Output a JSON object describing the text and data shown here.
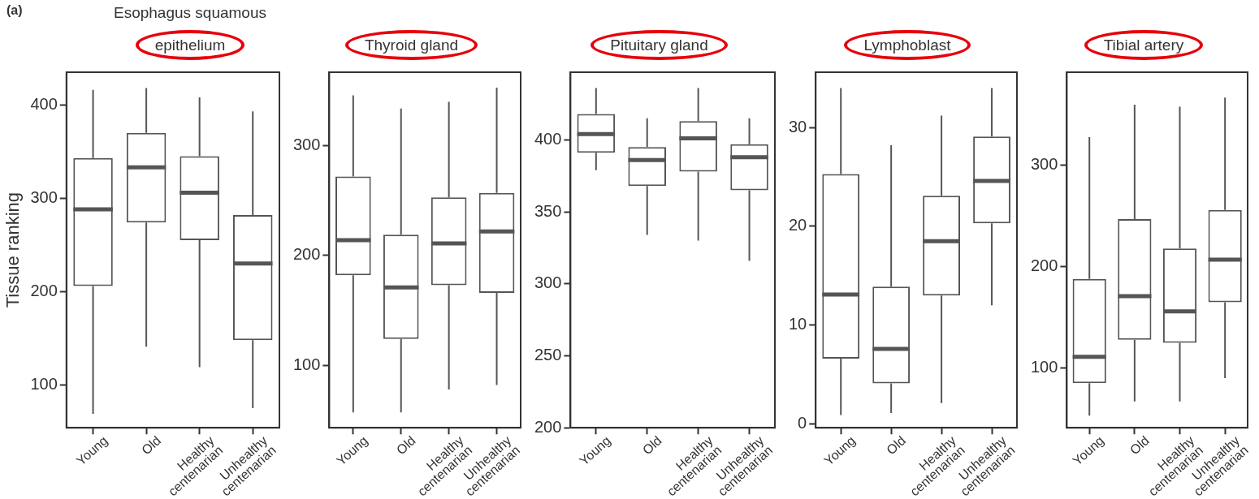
{
  "chart_data": [
    {
      "type": "box",
      "title": "Esophagus squamous epithelium",
      "ylabel": "Tissue ranking",
      "annotations": [
        "(a)"
      ],
      "categories": [
        "Young",
        "Old",
        "Healthy centenarian",
        "Unhealthy centenarian"
      ],
      "ylim": [
        54,
        435
      ],
      "yticks": [
        100,
        200,
        300,
        400
      ],
      "boxes": [
        {
          "low": 69,
          "q1": 206,
          "median": 288,
          "q3": 343,
          "high": 416
        },
        {
          "low": 141,
          "q1": 274,
          "median": 333,
          "q3": 370,
          "high": 418
        },
        {
          "low": 119,
          "q1": 255,
          "median": 306,
          "q3": 345,
          "high": 408
        },
        {
          "low": 75,
          "q1": 148,
          "median": 230,
          "q3": 282,
          "high": 393
        }
      ]
    },
    {
      "type": "box",
      "title": "Thyroid gland",
      "categories": [
        "Young",
        "Old",
        "Healthy centenarian",
        "Unhealthy centenarian"
      ],
      "ylim": [
        43,
        367
      ],
      "yticks": [
        100,
        200,
        300
      ],
      "boxes": [
        {
          "low": 57,
          "q1": 182,
          "median": 214,
          "q3": 272,
          "high": 346
        },
        {
          "low": 57,
          "q1": 124,
          "median": 171,
          "q3": 219,
          "high": 334
        },
        {
          "low": 78,
          "q1": 173,
          "median": 211,
          "q3": 253,
          "high": 340
        },
        {
          "low": 82,
          "q1": 166,
          "median": 222,
          "q3": 257,
          "high": 353
        }
      ]
    },
    {
      "type": "box",
      "title": "Pituitary gland",
      "categories": [
        "Young",
        "Old",
        "Healthy centenarian",
        "Unhealthy centenarian"
      ],
      "ylim": [
        200,
        447
      ],
      "yticks": [
        200,
        250,
        300,
        350,
        400
      ],
      "boxes": [
        {
          "low": 379,
          "q1": 391,
          "median": 404,
          "q3": 418,
          "high": 436
        },
        {
          "low": 334,
          "q1": 368,
          "median": 386,
          "q3": 395,
          "high": 415
        },
        {
          "low": 330,
          "q1": 378,
          "median": 401,
          "q3": 413,
          "high": 436
        },
        {
          "low": 316,
          "q1": 365,
          "median": 388,
          "q3": 397,
          "high": 415
        }
      ]
    },
    {
      "type": "box",
      "title": "Lymphoblast",
      "categories": [
        "Young",
        "Old",
        "Healthy centenarian",
        "Unhealthy centenarian"
      ],
      "ylim": [
        -0.4,
        35.6
      ],
      "yticks": [
        0,
        10,
        20,
        30
      ],
      "boxes": [
        {
          "low": 0.9,
          "q1": 6.6,
          "median": 13.1,
          "q3": 25.3,
          "high": 34
        },
        {
          "low": 1.1,
          "q1": 4.1,
          "median": 7.6,
          "q3": 13.9,
          "high": 28.2
        },
        {
          "low": 2.1,
          "q1": 13,
          "median": 18.5,
          "q3": 23.1,
          "high": 31.2
        },
        {
          "low": 12,
          "q1": 20.3,
          "median": 24.6,
          "q3": 29.1,
          "high": 34
        }
      ]
    },
    {
      "type": "box",
      "title": "Tibial artery",
      "categories": [
        "Young",
        "Old",
        "Healthy centenarian",
        "Unhealthy centenarian"
      ],
      "ylim": [
        41,
        392
      ],
      "yticks": [
        100,
        200,
        300
      ],
      "boxes": [
        {
          "low": 53,
          "q1": 85,
          "median": 111,
          "q3": 188,
          "high": 328
        },
        {
          "low": 67,
          "q1": 128,
          "median": 171,
          "q3": 247,
          "high": 360
        },
        {
          "low": 67,
          "q1": 125,
          "median": 156,
          "q3": 218,
          "high": 358
        },
        {
          "low": 90,
          "q1": 165,
          "median": 207,
          "q3": 256,
          "high": 367
        }
      ]
    }
  ]
}
